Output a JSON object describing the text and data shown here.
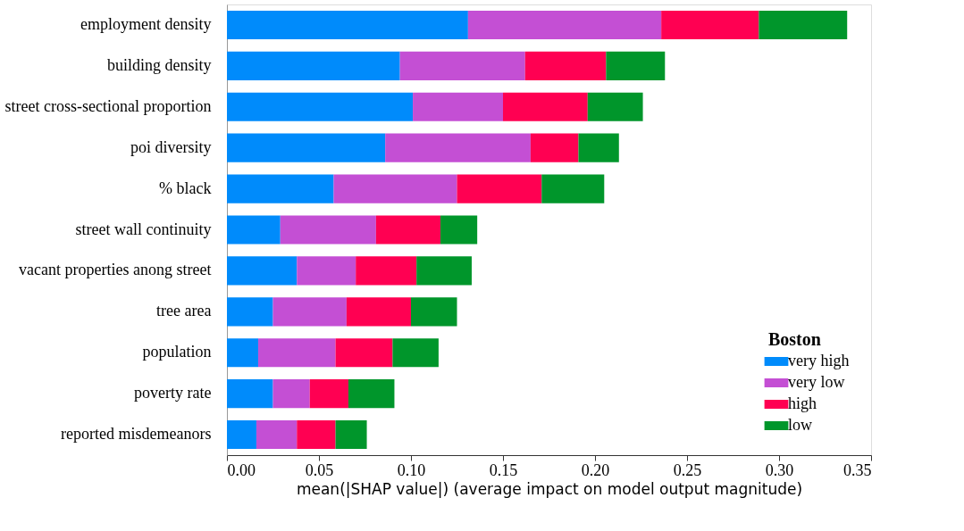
{
  "chart_data": {
    "type": "bar",
    "orientation": "horizontal",
    "stacked": true,
    "xlabel": "mean(|SHAP value|) (average impact on model output magnitude)",
    "legend_title": "Boston",
    "legend": "bottom right",
    "grid": false,
    "categories": [
      "employment density",
      "building density",
      "street cross-sectional proportion",
      "poi diversity",
      "% black",
      "street wall continuity",
      "vacant properties anong street",
      "tree area",
      "population",
      "poverty rate",
      "reported misdemeanors"
    ],
    "series": [
      {
        "name": "very high",
        "color": "#008bfb",
        "values": [
          0.131,
          0.094,
          0.101,
          0.086,
          0.058,
          0.029,
          0.038,
          0.025,
          0.017,
          0.025,
          0.016
        ]
      },
      {
        "name": "very low",
        "color": "#c44fd4",
        "values": [
          0.105,
          0.068,
          0.049,
          0.079,
          0.067,
          0.052,
          0.032,
          0.04,
          0.042,
          0.02,
          0.022
        ]
      },
      {
        "name": "high",
        "color": "#ff0052",
        "values": [
          0.053,
          0.044,
          0.046,
          0.026,
          0.046,
          0.035,
          0.033,
          0.035,
          0.031,
          0.021,
          0.021
        ]
      },
      {
        "name": "low",
        "color": "#00962b",
        "values": [
          0.048,
          0.032,
          0.03,
          0.022,
          0.034,
          0.02,
          0.03,
          0.025,
          0.025,
          0.025,
          0.017
        ]
      }
    ],
    "xlim": [
      0,
      0.35
    ],
    "xticks": [
      {
        "value": 0,
        "label": "0.00"
      },
      {
        "value": 0.05,
        "label": "0.05"
      },
      {
        "value": 0.1,
        "label": "0.10"
      },
      {
        "value": 0.15,
        "label": "0.15"
      },
      {
        "value": 0.2,
        "label": "0.20"
      },
      {
        "value": 0.25,
        "label": "0.25"
      },
      {
        "value": 0.3,
        "label": "0.30"
      },
      {
        "value": 0.35,
        "label": "0.35"
      }
    ]
  }
}
